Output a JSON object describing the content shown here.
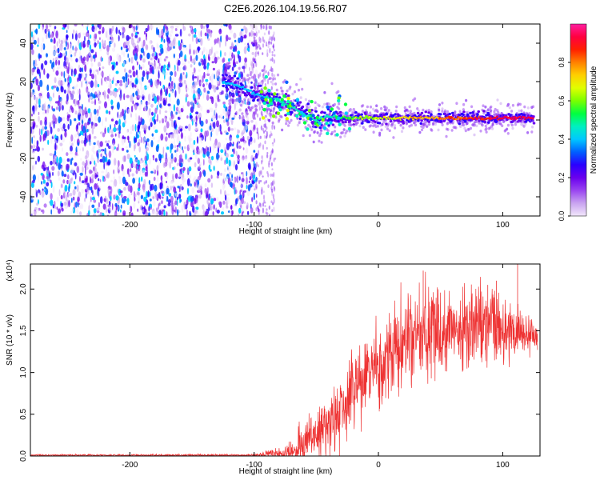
{
  "figure": {
    "title": "C2E6.2026.104.19.56.R07"
  },
  "colors": {
    "snr_line": "#ee3333",
    "axis": "#000000",
    "background": "#ffffff"
  },
  "chart_data": [
    {
      "type": "heatmap",
      "name": "spectrogram",
      "title": "C2E6.2026.104.19.56.R07",
      "xlabel": "Height of straight line (km)",
      "ylabel": "Frequency (Hz)",
      "xlim": [
        -280,
        130
      ],
      "ylim": [
        -50,
        50
      ],
      "xticks": [
        -200,
        -100,
        0,
        100
      ],
      "xtick_labels": [
        "-200",
        "-100",
        "0",
        "100"
      ],
      "yticks": [
        -40,
        -20,
        0,
        20,
        40
      ],
      "ytick_labels": [
        "-40",
        "-20",
        "0",
        "20",
        "40"
      ],
      "colorbar": {
        "label": "Normalized spectral amplitude",
        "range": [
          0,
          1
        ],
        "ticks": [
          0.0,
          0.2,
          0.4,
          0.6,
          0.8
        ],
        "tick_labels": [
          "0.0",
          "0.2",
          "0.4",
          "0.6",
          "0.8"
        ],
        "colors": [
          "#f2e6fb",
          "#c9a4f0",
          "#9a45f0",
          "#6a00ee",
          "#2a00ff",
          "#0060ff",
          "#00c8ff",
          "#00f0c0",
          "#00ff40",
          "#7aff00",
          "#e0ff00",
          "#ffd000",
          "#ff8000",
          "#ff2000",
          "#ff0040",
          "#ff1ea0"
        ]
      },
      "signal_track": {
        "x": [
          -125,
          -110,
          -100,
          -90,
          -80,
          -70,
          -60,
          -50,
          -40,
          -30,
          -20,
          -10,
          0,
          20,
          40,
          60,
          80,
          100,
          125
        ],
        "freq": [
          20,
          17,
          14,
          12,
          10,
          7,
          3,
          0,
          2,
          1,
          1,
          1,
          1,
          1,
          1,
          1,
          1,
          1,
          1
        ]
      },
      "noise_region": {
        "x_start": -280,
        "x_end": -100,
        "sparse_end": -83
      }
    },
    {
      "type": "line",
      "name": "snr",
      "xlabel": "Height of straight line (km)",
      "ylabel": "SNR (10 * v/v)",
      "y_multiplier": "(x10⁴)",
      "xlim": [
        -280,
        130
      ],
      "ylim": [
        0,
        2.3
      ],
      "xticks": [
        -200,
        -100,
        0,
        100
      ],
      "xtick_labels": [
        "-200",
        "-100",
        "0",
        "100"
      ],
      "yticks": [
        0.0,
        0.5,
        1.0,
        1.5,
        2.0
      ],
      "ytick_labels": [
        "0.0",
        "0.5",
        "1.0",
        "1.5",
        "2.0"
      ],
      "trend": {
        "x": [
          -280,
          -100,
          -75,
          -60,
          -50,
          -40,
          -30,
          -20,
          -10,
          0,
          10,
          20,
          30,
          40,
          60,
          80,
          100,
          115,
          128
        ],
        "y": [
          0.01,
          0.01,
          0.03,
          0.12,
          0.25,
          0.38,
          0.55,
          0.75,
          0.92,
          1.05,
          1.18,
          1.3,
          1.42,
          1.5,
          1.52,
          1.5,
          1.48,
          1.47,
          1.45
        ]
      },
      "spread": {
        "x": [
          -280,
          -100,
          -75,
          -60,
          -40,
          -20,
          0,
          20,
          40,
          60,
          80,
          100,
          128
        ],
        "y": [
          0.005,
          0.008,
          0.05,
          0.15,
          0.22,
          0.3,
          0.28,
          0.32,
          0.3,
          0.28,
          0.28,
          0.25,
          0.1
        ]
      },
      "peaks": [
        {
          "x": 36,
          "y": 2.22
        },
        {
          "x": 95,
          "y": 2.1
        },
        {
          "x": 88,
          "y": 2.05
        },
        {
          "x": 112,
          "y": 2.3
        }
      ]
    }
  ]
}
